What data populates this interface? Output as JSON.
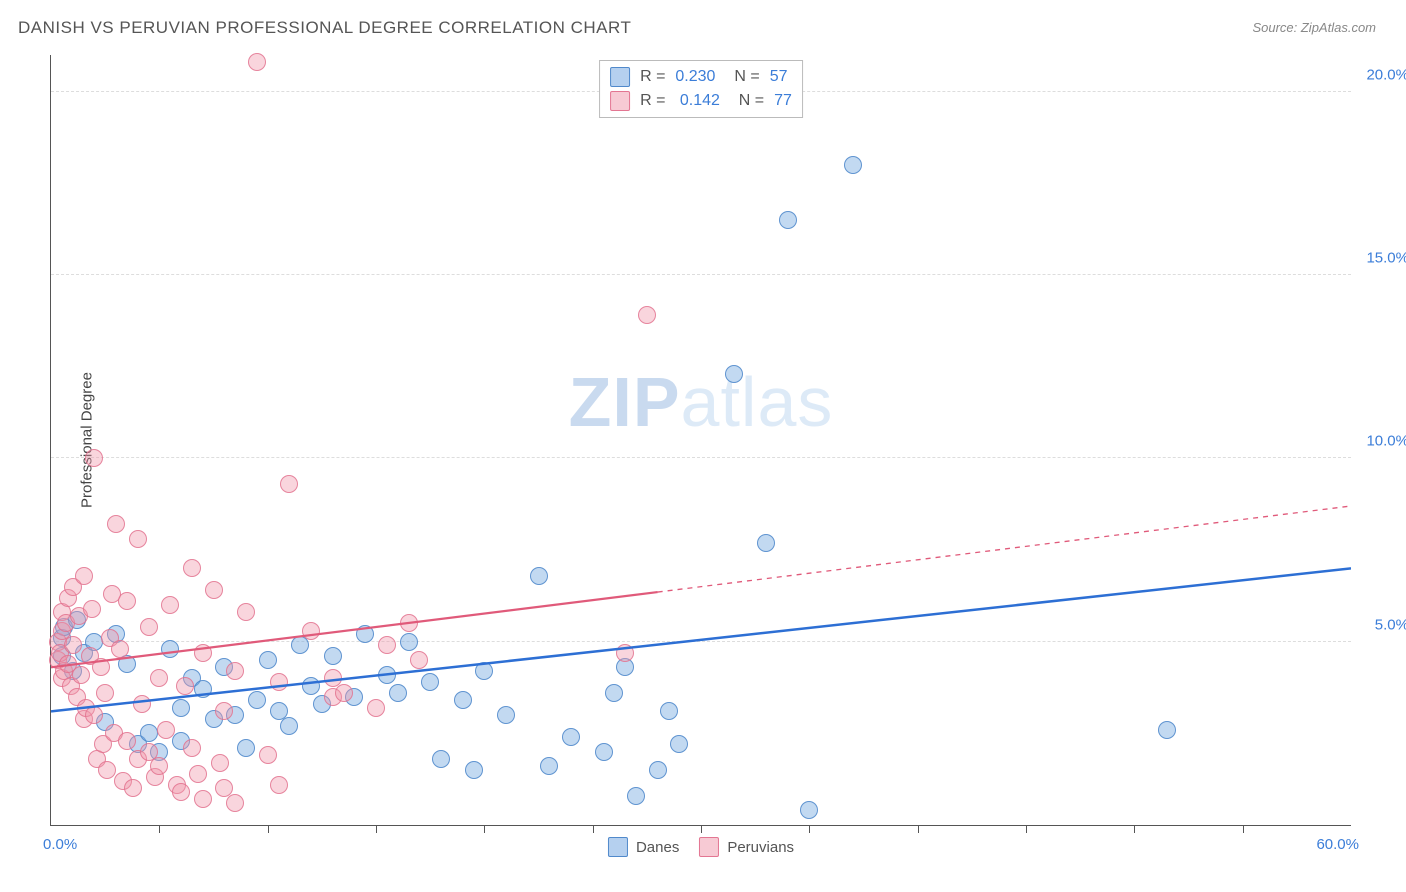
{
  "title": "DANISH VS PERUVIAN PROFESSIONAL DEGREE CORRELATION CHART",
  "source": "Source: ZipAtlas.com",
  "watermark_bold": "ZIP",
  "watermark_light": "atlas",
  "chart": {
    "type": "scatter",
    "background_color": "#ffffff",
    "grid_color": "#dddddd",
    "axis_color": "#555555",
    "yaxis_label": "Professional Degree",
    "yaxis_label_fontsize": 15,
    "yaxis_label_color": "#444444",
    "xlim": [
      0,
      60
    ],
    "ylim": [
      0,
      21
    ],
    "xtick_step": 5,
    "ytick_positions": [
      5,
      10,
      15,
      20
    ],
    "ytick_labels": [
      "5.0%",
      "10.0%",
      "15.0%",
      "20.0%"
    ],
    "ytick_color": "#3b7dd8",
    "xaxis_start_label": "0.0%",
    "xaxis_end_label": "60.0%",
    "marker_radius": 8,
    "series": [
      {
        "name": "Danes",
        "color_fill": "rgba(120,170,225,0.45)",
        "color_stroke": "rgba(70,130,200,0.8)",
        "r_value": "0.230",
        "n_value": "57",
        "trendline": {
          "x1": 0,
          "y1": 3.1,
          "x2": 60,
          "y2": 7.0,
          "solid_until_x": 60,
          "stroke": "#2d6fd4",
          "stroke_width": 2.5,
          "dash": "none"
        },
        "points": [
          [
            0.5,
            4.6
          ],
          [
            0.5,
            5.1
          ],
          [
            0.6,
            5.4
          ],
          [
            1.0,
            4.2
          ],
          [
            1.2,
            5.6
          ],
          [
            1.5,
            4.7
          ],
          [
            2.0,
            5.0
          ],
          [
            2.5,
            2.8
          ],
          [
            3.0,
            5.2
          ],
          [
            3.5,
            4.4
          ],
          [
            4.0,
            2.2
          ],
          [
            4.5,
            2.5
          ],
          [
            5.0,
            2.0
          ],
          [
            5.5,
            4.8
          ],
          [
            6.0,
            2.3
          ],
          [
            6.0,
            3.2
          ],
          [
            6.5,
            4.0
          ],
          [
            7.0,
            3.7
          ],
          [
            7.5,
            2.9
          ],
          [
            8.0,
            4.3
          ],
          [
            8.5,
            3.0
          ],
          [
            9.0,
            2.1
          ],
          [
            9.5,
            3.4
          ],
          [
            10.0,
            4.5
          ],
          [
            10.5,
            3.1
          ],
          [
            11.0,
            2.7
          ],
          [
            11.5,
            4.9
          ],
          [
            12.0,
            3.8
          ],
          [
            12.5,
            3.3
          ],
          [
            13.0,
            4.6
          ],
          [
            14.0,
            3.5
          ],
          [
            14.5,
            5.2
          ],
          [
            15.5,
            4.1
          ],
          [
            16.0,
            3.6
          ],
          [
            16.5,
            5.0
          ],
          [
            17.5,
            3.9
          ],
          [
            18.0,
            1.8
          ],
          [
            19.0,
            3.4
          ],
          [
            19.5,
            1.5
          ],
          [
            20.0,
            4.2
          ],
          [
            21.0,
            3.0
          ],
          [
            22.5,
            6.8
          ],
          [
            23.0,
            1.6
          ],
          [
            24.0,
            2.4
          ],
          [
            25.5,
            2.0
          ],
          [
            26.0,
            3.6
          ],
          [
            27.0,
            0.8
          ],
          [
            28.0,
            1.5
          ],
          [
            28.5,
            3.1
          ],
          [
            29.0,
            2.2
          ],
          [
            31.5,
            12.3
          ],
          [
            33.0,
            7.7
          ],
          [
            34.0,
            16.5
          ],
          [
            35.0,
            0.4
          ],
          [
            37.0,
            18.0
          ],
          [
            51.5,
            2.6
          ],
          [
            26.5,
            4.3
          ]
        ]
      },
      {
        "name": "Peruvians",
        "color_fill": "rgba(240,150,170,0.4)",
        "color_stroke": "rgba(225,110,140,0.8)",
        "r_value": "0.142",
        "n_value": "77",
        "trendline": {
          "x1": 0,
          "y1": 4.3,
          "x2": 60,
          "y2": 8.7,
          "solid_until_x": 28,
          "stroke": "#e05a7a",
          "stroke_width": 2.2,
          "dash": "5,5"
        },
        "points": [
          [
            0.3,
            4.5
          ],
          [
            0.3,
            5.0
          ],
          [
            0.4,
            4.7
          ],
          [
            0.5,
            5.3
          ],
          [
            0.5,
            5.8
          ],
          [
            0.5,
            4.0
          ],
          [
            0.6,
            4.2
          ],
          [
            0.7,
            5.5
          ],
          [
            0.8,
            6.2
          ],
          [
            0.8,
            4.4
          ],
          [
            0.9,
            3.8
          ],
          [
            1.0,
            4.9
          ],
          [
            1.0,
            6.5
          ],
          [
            1.2,
            3.5
          ],
          [
            1.3,
            5.7
          ],
          [
            1.4,
            4.1
          ],
          [
            1.5,
            2.9
          ],
          [
            1.5,
            6.8
          ],
          [
            1.6,
            3.2
          ],
          [
            1.8,
            4.6
          ],
          [
            1.9,
            5.9
          ],
          [
            2.0,
            10.0
          ],
          [
            2.0,
            3.0
          ],
          [
            2.1,
            1.8
          ],
          [
            2.3,
            4.3
          ],
          [
            2.4,
            2.2
          ],
          [
            2.5,
            3.6
          ],
          [
            2.6,
            1.5
          ],
          [
            2.7,
            5.1
          ],
          [
            2.8,
            6.3
          ],
          [
            2.9,
            2.5
          ],
          [
            3.0,
            8.2
          ],
          [
            3.2,
            4.8
          ],
          [
            3.3,
            1.2
          ],
          [
            3.5,
            6.1
          ],
          [
            3.5,
            2.3
          ],
          [
            3.8,
            1.0
          ],
          [
            4.0,
            1.8
          ],
          [
            4.0,
            7.8
          ],
          [
            4.2,
            3.3
          ],
          [
            4.5,
            2.0
          ],
          [
            4.5,
            5.4
          ],
          [
            4.8,
            1.3
          ],
          [
            5.0,
            4.0
          ],
          [
            5.0,
            1.6
          ],
          [
            5.3,
            2.6
          ],
          [
            5.5,
            6.0
          ],
          [
            5.8,
            1.1
          ],
          [
            6.0,
            0.9
          ],
          [
            6.2,
            3.8
          ],
          [
            6.5,
            7.0
          ],
          [
            6.5,
            2.1
          ],
          [
            6.8,
            1.4
          ],
          [
            7.0,
            4.7
          ],
          [
            7.0,
            0.7
          ],
          [
            7.5,
            6.4
          ],
          [
            7.8,
            1.7
          ],
          [
            8.0,
            3.1
          ],
          [
            8.0,
            1.0
          ],
          [
            8.5,
            0.6
          ],
          [
            8.5,
            4.2
          ],
          [
            9.0,
            5.8
          ],
          [
            9.5,
            20.8
          ],
          [
            10.0,
            1.9
          ],
          [
            10.5,
            1.1
          ],
          [
            10.5,
            3.9
          ],
          [
            11.0,
            9.3
          ],
          [
            12.0,
            5.3
          ],
          [
            13.0,
            3.5
          ],
          [
            13.5,
            3.6
          ],
          [
            15.0,
            3.2
          ],
          [
            15.5,
            4.9
          ],
          [
            16.5,
            5.5
          ],
          [
            17.0,
            4.5
          ],
          [
            26.5,
            4.7
          ],
          [
            27.5,
            13.9
          ],
          [
            13.0,
            4.0
          ]
        ]
      }
    ],
    "legend_bottom": [
      {
        "swatch": "blue",
        "label": "Danes"
      },
      {
        "swatch": "pink",
        "label": "Peruvians"
      }
    ]
  }
}
